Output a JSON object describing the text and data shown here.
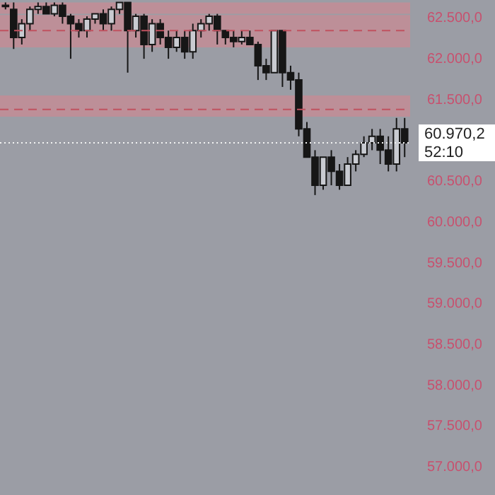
{
  "chart_data": {
    "type": "candlestick",
    "categories": [
      null,
      null,
      null,
      null,
      null,
      null,
      null,
      null,
      null,
      null,
      null,
      null,
      null,
      null,
      null,
      null,
      null,
      null,
      null,
      null,
      null,
      null,
      null,
      null,
      null,
      null,
      null,
      null,
      null,
      null,
      null,
      null,
      null,
      null,
      null,
      null,
      null,
      null,
      null,
      null,
      null,
      null,
      null,
      null,
      null,
      null,
      null,
      null,
      null,
      null
    ],
    "ohlc": [
      [
        62640,
        62690,
        62605,
        62655
      ],
      [
        62605,
        62690,
        62120,
        62260
      ],
      [
        62260,
        62485,
        62175,
        62430
      ],
      [
        62430,
        62640,
        62345,
        62605
      ],
      [
        62605,
        62690,
        62550,
        62640
      ],
      [
        62640,
        62690,
        62550,
        62550
      ],
      [
        62550,
        62690,
        62520,
        62655
      ],
      [
        62655,
        62690,
        62430,
        62520
      ],
      [
        62520,
        62550,
        62000,
        62430
      ],
      [
        62430,
        62485,
        62260,
        62345
      ],
      [
        62345,
        62520,
        62260,
        62485
      ],
      [
        62485,
        62550,
        62430,
        62550
      ],
      [
        62550,
        62605,
        62345,
        62430
      ],
      [
        62430,
        62640,
        62345,
        62605
      ],
      [
        62605,
        62690,
        62550,
        62690
      ],
      [
        62690,
        62690,
        61830,
        62345
      ],
      [
        62345,
        62550,
        62260,
        62520
      ],
      [
        62520,
        62550,
        62000,
        62175
      ],
      [
        62175,
        62485,
        62085,
        62430
      ],
      [
        62430,
        62485,
        62175,
        62260
      ],
      [
        62260,
        62345,
        62000,
        62140
      ],
      [
        62140,
        62345,
        62085,
        62260
      ],
      [
        62260,
        62345,
        62000,
        62085
      ],
      [
        62085,
        62430,
        62000,
        62345
      ],
      [
        62345,
        62485,
        62260,
        62430
      ],
      [
        62430,
        62550,
        62345,
        62520
      ],
      [
        62520,
        62550,
        62175,
        62345
      ],
      [
        62345,
        62345,
        62175,
        62260
      ],
      [
        62260,
        62345,
        62140,
        62210
      ],
      [
        62210,
        62345,
        62175,
        62260
      ],
      [
        62260,
        62345,
        62175,
        62175
      ],
      [
        62175,
        62210,
        61740,
        61915
      ],
      [
        61915,
        62000,
        61740,
        61830
      ],
      [
        61830,
        62345,
        61830,
        62345
      ],
      [
        62345,
        62345,
        61655,
        61830
      ],
      [
        61830,
        61915,
        61620,
        61740
      ],
      [
        61740,
        61830,
        61050,
        61140
      ],
      [
        61140,
        61225,
        60795,
        60795
      ],
      [
        60795,
        60880,
        60330,
        60450
      ],
      [
        60450,
        60795,
        60395,
        60795
      ],
      [
        60795,
        60880,
        60450,
        60620
      ],
      [
        60620,
        60710,
        60395,
        60450
      ],
      [
        60450,
        60795,
        60450,
        60710
      ],
      [
        60710,
        60880,
        60620,
        60830
      ],
      [
        60830,
        61050,
        60795,
        60970
      ],
      [
        60970,
        61140,
        60880,
        61050
      ],
      [
        61050,
        61140,
        60710,
        60880
      ],
      [
        60880,
        61050,
        60620,
        60710
      ],
      [
        60710,
        61275,
        60620,
        61140
      ],
      [
        61140,
        61275,
        60795,
        60970
      ]
    ],
    "color": "#161616",
    "ylim": [
      56655,
      62720
    ],
    "yticks": [
      {
        "value": 57000,
        "label": "57.000,0"
      },
      {
        "value": 57500,
        "label": "57.500,0"
      },
      {
        "value": 58000,
        "label": "58.000,0"
      },
      {
        "value": 58500,
        "label": "58.500,0"
      },
      {
        "value": 59000,
        "label": "59.000,0"
      },
      {
        "value": 59500,
        "label": "59.500,0"
      },
      {
        "value": 60000,
        "label": "60.000,0"
      },
      {
        "value": 60500,
        "label": "60.500,0"
      },
      {
        "value": 61500,
        "label": "61.500,0"
      },
      {
        "value": 62000,
        "label": "62.000,0"
      },
      {
        "value": 62500,
        "label": "62.500,0"
      }
    ],
    "bands": [
      {
        "axis": "y",
        "from": 62550,
        "to": 62690,
        "color": "#c58c95"
      },
      {
        "axis": "y",
        "from": 62140,
        "to": 62535,
        "color": "#c58c95"
      },
      {
        "axis": "y",
        "from": 61290,
        "to": 61550,
        "color": "#c58c95"
      }
    ],
    "ref_lines": [
      {
        "axis": "y",
        "value": 62345,
        "color": "#c0525f",
        "line_style": "dashed"
      },
      {
        "axis": "y",
        "value": 61380,
        "color": "#c0525f",
        "line_style": "dashed"
      },
      {
        "axis": "y",
        "value": 60970.2,
        "label": "60.970,2",
        "color": "#f2f2f2",
        "line_style": "dotted"
      }
    ],
    "annotations": [
      "52:10"
    ]
  }
}
